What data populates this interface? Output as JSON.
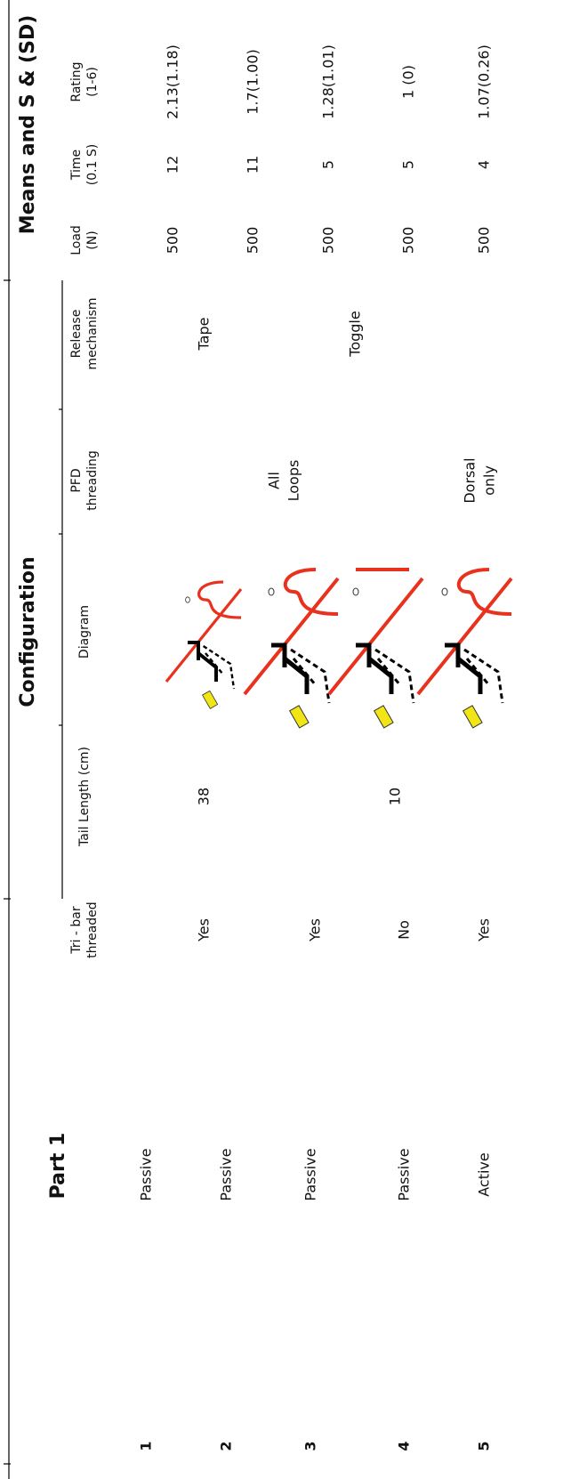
{
  "titles": {
    "part": "Part 1",
    "configuration": "Configuration",
    "means": "Means and S & (SD)"
  },
  "headers": {
    "tri_bar": [
      "Tri - bar",
      "threaded"
    ],
    "tail_length": [
      "Tail Length (cm)"
    ],
    "diagram": [
      "Diagram"
    ],
    "pfd_threading": [
      "PFD",
      "threading"
    ],
    "release_mechanism": [
      "Release",
      "mechanism"
    ],
    "load": [
      "Load",
      "(N)"
    ],
    "time": [
      "Time",
      "(0.1 S)"
    ],
    "rating": [
      "Rating",
      "(1-6)"
    ]
  },
  "rows": [
    {
      "number": 1,
      "mode": "Passive",
      "load": 500,
      "time": 12,
      "rating": "2.13(1.18)"
    },
    {
      "number": 2,
      "mode": "Passive",
      "tri_bar": "Yes",
      "load": 500,
      "time": 11,
      "rating": "1.7(1.00)"
    },
    {
      "number": 3,
      "mode": "Passive",
      "tri_bar": "Yes",
      "load": 500,
      "time": 5,
      "rating": "1.28(1.01)"
    },
    {
      "number": 4,
      "mode": "Passive",
      "tri_bar": "No",
      "load": 500,
      "time": 5,
      "rating": "1 (0)"
    },
    {
      "number": 5,
      "mode": "Active",
      "tri_bar": "Yes",
      "load": 500,
      "time": 4,
      "rating": "1.07(0.26)"
    }
  ],
  "spans": {
    "tail_length": [
      "38",
      "10"
    ],
    "pfd_threading": [
      [
        "All",
        "Loops"
      ],
      [
        "Dorsal",
        "only"
      ]
    ],
    "release_mechanism": [
      "Tape",
      "Toggle"
    ]
  }
}
